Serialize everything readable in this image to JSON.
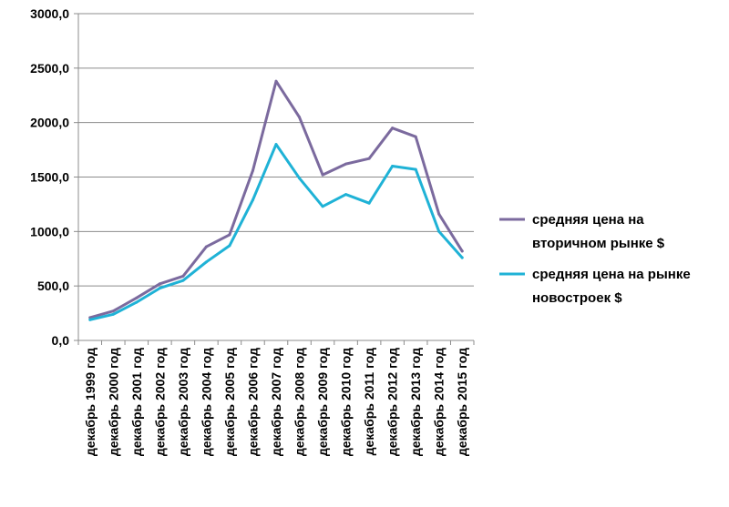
{
  "chart_data": {
    "type": "line",
    "categories": [
      "декабрь 1999 год",
      "декабрь 2000 год",
      "декабрь 2001 год",
      "декабрь 2002 год",
      "декабрь 2003 год",
      "декабрь 2004 год",
      "декабрь 2005 год",
      "декабрь 2006 год",
      "декабрь 2007 год",
      "декабрь 2008 год",
      "декабрь 2009 год",
      "декабрь 2010 год",
      "декабрь 2011 год",
      "декабрь 2012 год",
      "декабрь 2013 год",
      "декабрь 2014 год",
      "декабрь 2015 год"
    ],
    "series": [
      {
        "name": "средняя цена на вторичном рынке  $",
        "legend_lines": [
          "средняя цена на",
          "вторичном рынке  $"
        ],
        "color": "#7b6a9e",
        "values": [
          210,
          270,
          390,
          520,
          590,
          860,
          970,
          1560,
          2380,
          2050,
          1520,
          1620,
          1670,
          1950,
          1870,
          1160,
          820
        ]
      },
      {
        "name": "средняя цена на рынке новостроек $",
        "legend_lines": [
          "средняя цена на рынке",
          "новостроек $"
        ],
        "color": "#1fb2d6",
        "values": [
          190,
          240,
          350,
          480,
          550,
          720,
          870,
          1290,
          1800,
          1490,
          1230,
          1340,
          1260,
          1600,
          1570,
          1000,
          760
        ]
      }
    ],
    "yticks": [
      "0,0",
      "500,0",
      "1000,0",
      "1500,0",
      "2000,0",
      "2500,0",
      "3000,0"
    ],
    "ylim": [
      0,
      3000
    ],
    "title": "",
    "xlabel": "",
    "ylabel": "",
    "grid": true,
    "legend_position": "right"
  }
}
